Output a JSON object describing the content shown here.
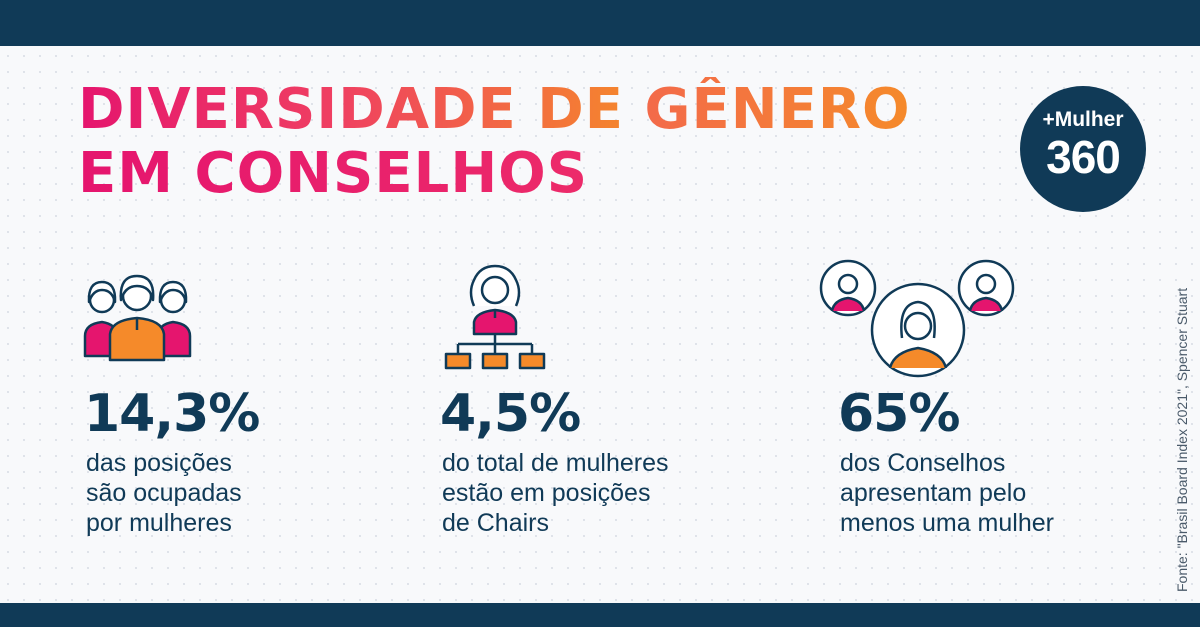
{
  "header": {
    "title_line1_part1": "DIVERSIDADE DE ",
    "title_line1_part2": "GÊNERO",
    "title_line2": "EM CONSELHOS"
  },
  "logo": {
    "brand": "+Mulher",
    "number": "360"
  },
  "source": "Fonte: \"Brasil Board Index 2021\", Spencer Stuart",
  "stats": [
    {
      "value": "14,3%",
      "lines": [
        "das posições",
        "são ocupadas",
        "por mulheres"
      ],
      "icon": "group-of-women-icon"
    },
    {
      "value": "4,5%",
      "lines": [
        "do total de mulheres",
        "estão em posições",
        "de Chairs"
      ],
      "icon": "woman-org-chart-icon"
    },
    {
      "value": "65%",
      "lines": [
        "dos Conselhos",
        "apresentam pelo",
        "menos uma mulher"
      ],
      "icon": "board-members-icon"
    }
  ],
  "colors": {
    "navy": "#103a57",
    "magenta": "#e5156e",
    "orange": "#f58a2a"
  }
}
